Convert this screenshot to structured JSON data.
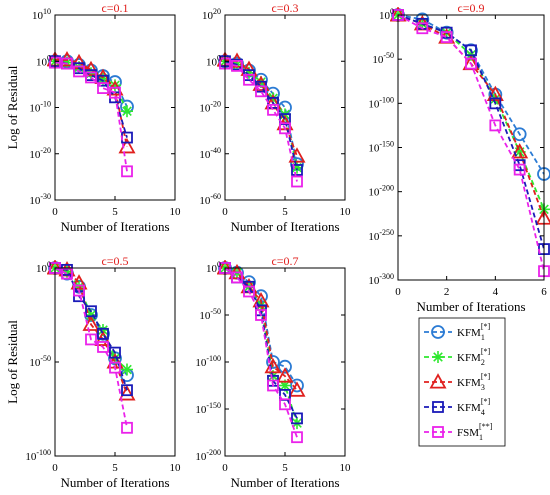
{
  "chart_data": [
    {
      "type": "line",
      "title": "ϲ=0.1",
      "xlabel": "Number of Iterations",
      "ylabel": "Log of Residual",
      "xlim": [
        0,
        10
      ],
      "ylim": [
        -30,
        10
      ],
      "xticks": [
        "0",
        "5",
        "10"
      ],
      "yticks": [
        {
          "exp": 10,
          "base": "10",
          "sup": "10"
        },
        {
          "exp": 0,
          "base": "10",
          "sup": "0"
        },
        {
          "exp": -10,
          "base": "10",
          "sup": "-10"
        },
        {
          "exp": -20,
          "base": "10",
          "sup": "-20"
        },
        {
          "exp": -30,
          "base": "10",
          "sup": "-30"
        }
      ],
      "series": [
        {
          "x": [
            0,
            1,
            2,
            3,
            4,
            5,
            6
          ],
          "y": [
            0,
            0,
            -0.8,
            -2,
            -3.2,
            -4.5,
            -9.8
          ]
        },
        {
          "x": [
            0,
            1,
            2,
            3,
            4,
            5,
            6
          ],
          "y": [
            0,
            -0.3,
            -1.3,
            -2.6,
            -3.8,
            -5.2,
            -10.8
          ]
        },
        {
          "x": [
            0,
            1,
            2,
            3,
            4,
            5,
            6
          ],
          "y": [
            0.3,
            0.3,
            -0.3,
            -1.8,
            -3.5,
            -6,
            -18.5
          ]
        },
        {
          "x": [
            0,
            1,
            2,
            3,
            4,
            5,
            6
          ],
          "y": [
            0,
            -0.5,
            -1.5,
            -3,
            -4.2,
            -7.8,
            -16.5
          ]
        },
        {
          "x": [
            0,
            1,
            2,
            3,
            4,
            5,
            6
          ],
          "y": [
            -0.3,
            -0.5,
            -2.2,
            -3.5,
            -5.8,
            -6.8,
            -23.8
          ]
        }
      ]
    },
    {
      "type": "line",
      "title": "ϲ=0.3",
      "xlabel": "Number of Iterations",
      "ylabel": "",
      "xlim": [
        0,
        10
      ],
      "ylim": [
        -60,
        20
      ],
      "xticks": [
        "0",
        "5",
        "10"
      ],
      "yticks": [
        {
          "exp": 20,
          "base": "10",
          "sup": "20"
        },
        {
          "exp": 0,
          "base": "10",
          "sup": "0"
        },
        {
          "exp": -20,
          "base": "10",
          "sup": "-20"
        },
        {
          "exp": -40,
          "base": "10",
          "sup": "-40"
        },
        {
          "exp": -60,
          "base": "10",
          "sup": "-60"
        }
      ],
      "series": [
        {
          "x": [
            0,
            1,
            2,
            3,
            4,
            5,
            6
          ],
          "y": [
            0,
            -1,
            -4,
            -8,
            -14,
            -20,
            -44.5
          ]
        },
        {
          "x": [
            0,
            1,
            2,
            3,
            4,
            5,
            6
          ],
          "y": [
            0,
            -1.5,
            -5,
            -9,
            -16,
            -23,
            -46
          ]
        },
        {
          "x": [
            0,
            1,
            2,
            3,
            4,
            5,
            6
          ],
          "y": [
            0.5,
            0,
            -3.5,
            -10,
            -18,
            -27,
            -41
          ]
        },
        {
          "x": [
            0,
            1,
            2,
            3,
            4,
            5,
            6
          ],
          "y": [
            0,
            -1.5,
            -6,
            -11,
            -18,
            -25,
            -47
          ]
        },
        {
          "x": [
            0,
            1,
            2,
            3,
            4,
            5,
            6
          ],
          "y": [
            -1,
            -2,
            -8,
            -13,
            -21,
            -29,
            -52
          ]
        }
      ]
    },
    {
      "type": "line",
      "title": "ϲ=0.9",
      "xlabel": "Number of Iterations",
      "ylabel": "",
      "xlim": [
        0,
        6
      ],
      "ylim": [
        -300,
        0
      ],
      "xticks": [
        "0",
        "2",
        "4",
        "6"
      ],
      "yticks": [
        {
          "exp": 0,
          "base": "10",
          "sup": "0"
        },
        {
          "exp": -50,
          "base": "10",
          "sup": "-50"
        },
        {
          "exp": -100,
          "base": "10",
          "sup": "-100"
        },
        {
          "exp": -150,
          "base": "10",
          "sup": "-150"
        },
        {
          "exp": -200,
          "base": "10",
          "sup": "-200"
        },
        {
          "exp": -250,
          "base": "10",
          "sup": "-250"
        },
        {
          "exp": -300,
          "base": "10",
          "sup": "-300"
        }
      ],
      "series": [
        {
          "x": [
            0,
            1,
            2,
            3,
            4,
            5,
            6
          ],
          "y": [
            0,
            -5,
            -20,
            -40,
            -90,
            -135,
            -180
          ]
        },
        {
          "x": [
            0,
            1,
            2,
            3,
            4,
            5,
            6
          ],
          "y": [
            0,
            -10,
            -20,
            -45,
            -95,
            -155,
            -220
          ]
        },
        {
          "x": [
            0,
            1,
            2,
            3,
            4,
            5,
            6
          ],
          "y": [
            0,
            -10,
            -25,
            -55,
            -90,
            -155,
            -230
          ]
        },
        {
          "x": [
            0,
            1,
            2,
            3,
            4,
            5,
            6
          ],
          "y": [
            0,
            -10,
            -20,
            -40,
            -100,
            -170,
            -265
          ]
        },
        {
          "x": [
            0,
            1,
            2,
            3,
            4,
            5,
            6
          ],
          "y": [
            0,
            -15,
            -25,
            -55,
            -125,
            -175,
            -290
          ]
        }
      ],
      "legend": {
        "location": "bottom-right",
        "entries": [
          {
            "base": "KFM",
            "sub": "1",
            "sup": "[*]"
          },
          {
            "base": "KFM",
            "sub": "2",
            "sup": "[*]"
          },
          {
            "base": "KFM",
            "sub": "3",
            "sup": "[*]"
          },
          {
            "base": "KFM",
            "sub": "4",
            "sup": "[*]"
          },
          {
            "base": "FSM",
            "sub": "1",
            "sup": "[**]"
          }
        ]
      }
    },
    {
      "type": "line",
      "title": "ϲ=0.5",
      "xlabel": "Number of Iterations",
      "ylabel": "Log of Residual",
      "xlim": [
        0,
        10
      ],
      "ylim": [
        -100,
        0
      ],
      "xticks": [
        "0",
        "5",
        "10"
      ],
      "yticks": [
        {
          "exp": 0,
          "base": "10",
          "sup": "0"
        },
        {
          "exp": -50,
          "base": "10",
          "sup": "-50"
        },
        {
          "exp": -100,
          "base": "10",
          "sup": "-100"
        }
      ],
      "series": [
        {
          "x": [
            0,
            1,
            2,
            3,
            4,
            5,
            6
          ],
          "y": [
            0,
            -3,
            -10,
            -25,
            -35,
            -48,
            -57
          ]
        },
        {
          "x": [
            0,
            1,
            2,
            3,
            4,
            5,
            6
          ],
          "y": [
            0,
            -2,
            -10,
            -25,
            -33,
            -48,
            -54
          ]
        },
        {
          "x": [
            0,
            1,
            2,
            3,
            4,
            5,
            6
          ],
          "y": [
            0,
            -1,
            -8,
            -30,
            -38,
            -50,
            -67
          ]
        },
        {
          "x": [
            0,
            1,
            2,
            3,
            4,
            5,
            6
          ],
          "y": [
            0,
            -1,
            -15,
            -23,
            -35,
            -45,
            -65
          ]
        },
        {
          "x": [
            0,
            1,
            2,
            3,
            4,
            5,
            6
          ],
          "y": [
            0,
            -3,
            -12,
            -38,
            -42,
            -53,
            -85
          ]
        }
      ]
    },
    {
      "type": "line",
      "title": "ϲ=0.7",
      "xlabel": "Number of Iterations",
      "ylabel": "",
      "xlim": [
        0,
        10
      ],
      "ylim": [
        -200,
        0
      ],
      "xticks": [
        "0",
        "5",
        "10"
      ],
      "yticks": [
        {
          "exp": 0,
          "base": "10",
          "sup": "0"
        },
        {
          "exp": -50,
          "base": "10",
          "sup": "-50"
        },
        {
          "exp": -100,
          "base": "10",
          "sup": "-100"
        },
        {
          "exp": -150,
          "base": "10",
          "sup": "-150"
        },
        {
          "exp": -200,
          "base": "10",
          "sup": "-200"
        }
      ],
      "series": [
        {
          "x": [
            0,
            1,
            2,
            3,
            4,
            5,
            6
          ],
          "y": [
            0,
            -5,
            -15,
            -30,
            -100,
            -105,
            -125
          ]
        },
        {
          "x": [
            0,
            1,
            2,
            3,
            4,
            5,
            6
          ],
          "y": [
            0,
            -5,
            -20,
            -40,
            -115,
            -125,
            -165
          ]
        },
        {
          "x": [
            0,
            1,
            2,
            3,
            4,
            5,
            6
          ],
          "y": [
            0,
            -5,
            -20,
            -35,
            -105,
            -115,
            -130
          ]
        },
        {
          "x": [
            0,
            1,
            2,
            3,
            4,
            5,
            6
          ],
          "y": [
            0,
            -10,
            -20,
            -45,
            -120,
            -135,
            -160
          ]
        },
        {
          "x": [
            0,
            1,
            2,
            3,
            4,
            5,
            6
          ],
          "y": [
            0,
            -10,
            -25,
            -50,
            -125,
            -145,
            -180
          ]
        }
      ]
    }
  ],
  "colors": [
    "#2b7bd4",
    "#2ee82e",
    "#e0201e",
    "#1a1ab8",
    "#ea22ea"
  ],
  "markers": [
    "circle",
    "asterisk",
    "triangle",
    "square",
    "square"
  ]
}
